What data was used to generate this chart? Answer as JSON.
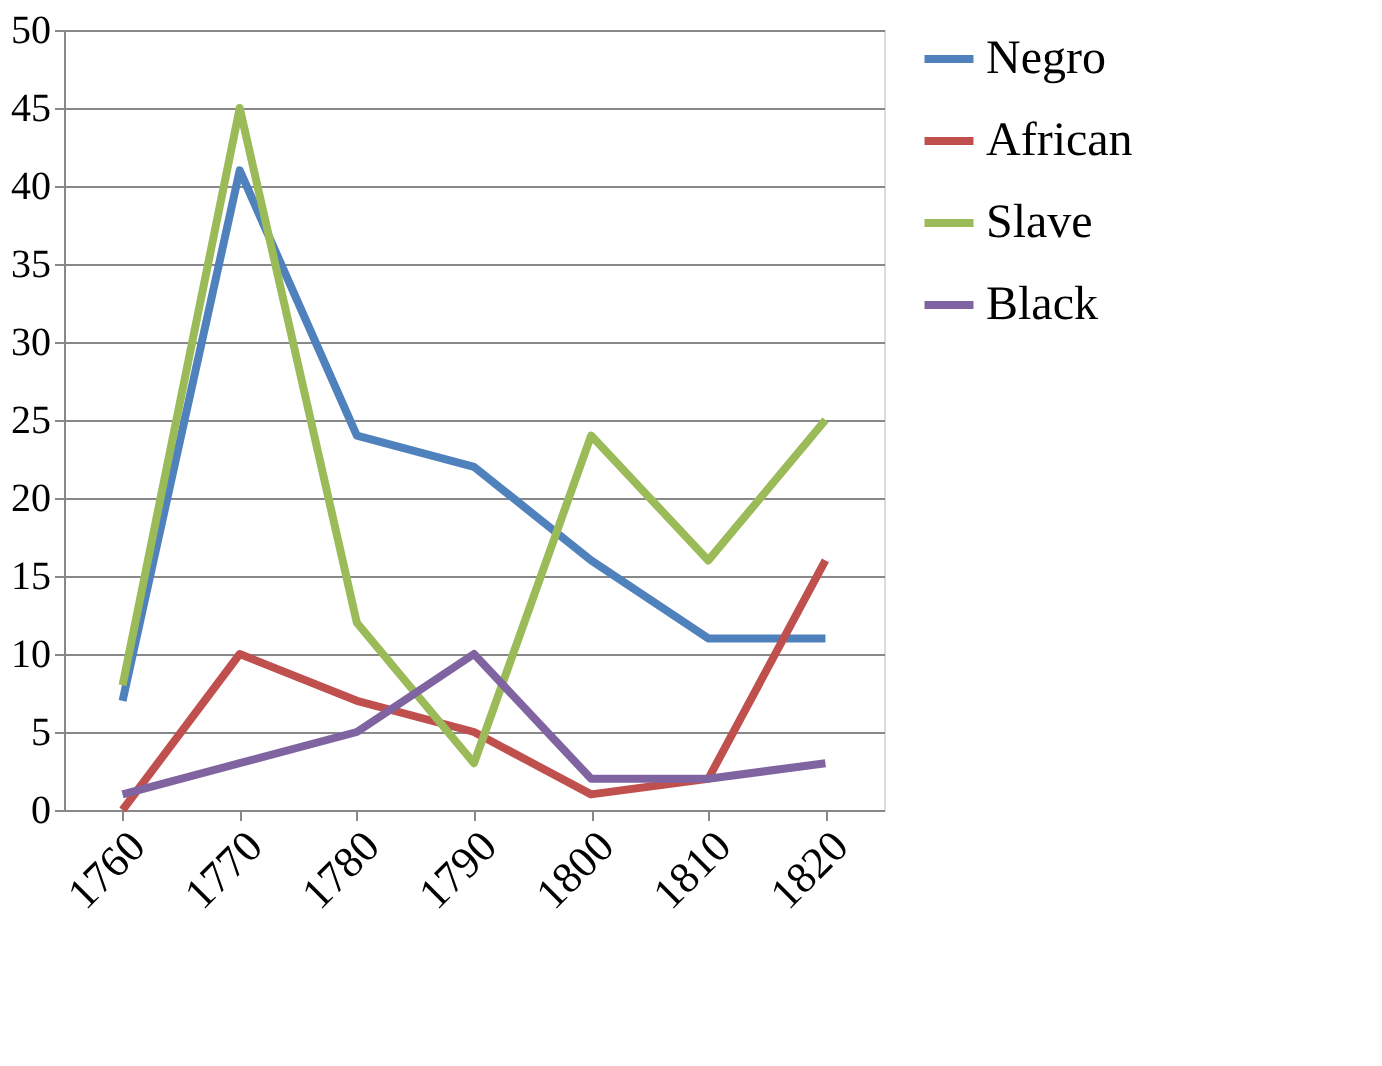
{
  "chart_data": {
    "type": "line",
    "categories": [
      "1760",
      "1770",
      "1780",
      "1790",
      "1800",
      "1810",
      "1820"
    ],
    "series": [
      {
        "name": "Negro",
        "color": "#4f81bd",
        "values": [
          7,
          41,
          24,
          22,
          16,
          11,
          11
        ]
      },
      {
        "name": "African",
        "color": "#c0504d",
        "values": [
          0,
          10,
          7,
          5,
          1,
          2,
          16
        ]
      },
      {
        "name": "Slave",
        "color": "#9bbb59",
        "values": [
          8,
          45,
          12,
          3,
          24,
          16,
          25
        ]
      },
      {
        "name": "Black",
        "color": "#8064a2",
        "values": [
          1,
          3,
          5,
          10,
          2,
          2,
          3
        ]
      }
    ],
    "ylim": [
      0,
      50
    ],
    "yticks": [
      0,
      5,
      10,
      15,
      20,
      25,
      30,
      35,
      40,
      45,
      50
    ],
    "grid": "y",
    "legend": "right",
    "marker": "none",
    "line_style": "solid"
  }
}
